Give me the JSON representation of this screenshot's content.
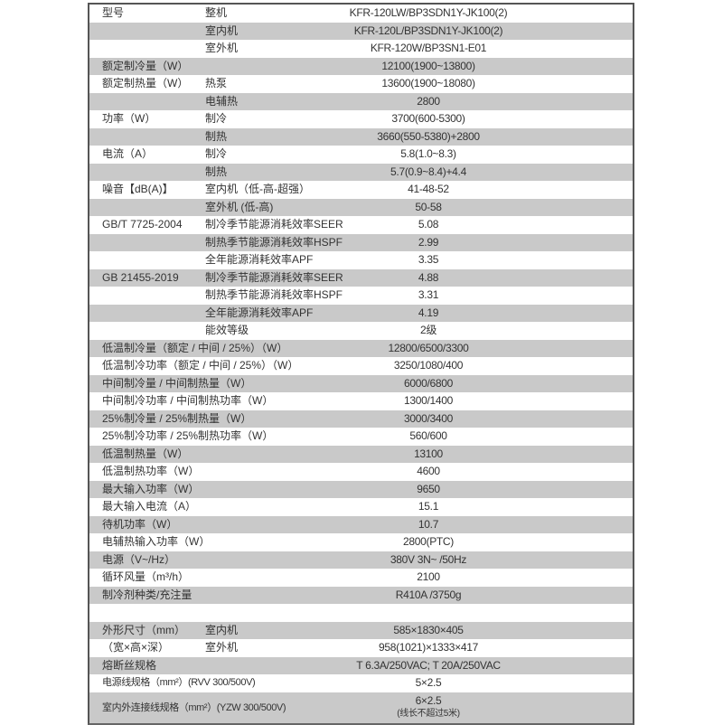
{
  "rows": [
    {
      "label": "型号",
      "sub": "整机",
      "value": "KFR-120LW/BP3SDN1Y-JK100(2)"
    },
    {
      "label": "",
      "sub": "室内机",
      "value": "KFR-120L/BP3SDN1Y-JK100(2)"
    },
    {
      "label": "",
      "sub": "室外机",
      "value": "KFR-120W/BP3SN1-E01"
    },
    {
      "label": "额定制冷量（W）",
      "sub": "",
      "value": "12100(1900~13800)"
    },
    {
      "label": "额定制热量（W）",
      "sub": "热泵",
      "value": "13600(1900~18080)"
    },
    {
      "label": "",
      "sub": "电辅热",
      "value": "2800"
    },
    {
      "label": "功率（W）",
      "sub": "制冷",
      "value": "3700(600-5300)"
    },
    {
      "label": "",
      "sub": "制热",
      "value": "3660(550-5380)+2800"
    },
    {
      "label": "电流（A）",
      "sub": "制冷",
      "value": "5.8(1.0~8.3)"
    },
    {
      "label": "",
      "sub": "制热",
      "value": "5.7(0.9~8.4)+4.4"
    },
    {
      "label": "噪音【dB(A)】",
      "sub": "室内机（低-高-超强）",
      "value": "41-48-52"
    },
    {
      "label": "",
      "sub": "室外机 (低-高)",
      "value": "50-58"
    },
    {
      "label": "GB/T 7725-2004",
      "sub": "制冷季节能源消耗效率SEER",
      "value": "5.08"
    },
    {
      "label": "",
      "sub": "制热季节能源消耗效率HSPF",
      "value": "2.99"
    },
    {
      "label": "",
      "sub": "全年能源消耗效率APF",
      "value": "3.35"
    },
    {
      "label": "GB 21455-2019",
      "sub": "制冷季节能源消耗效率SEER",
      "value": "4.88"
    },
    {
      "label": "",
      "sub": "制热季节能源消耗效率HSPF",
      "value": "3.31"
    },
    {
      "label": "",
      "sub": "全年能源消耗效率APF",
      "value": "4.19"
    },
    {
      "label": "",
      "sub": "能效等级",
      "value": "2级"
    },
    {
      "label": "低温制冷量（额定 / 中间 / 25%）（W）",
      "sub": "",
      "value": "12800/6500/3300"
    },
    {
      "label": "低温制冷功率（额定 / 中间 / 25%）（W）",
      "sub": "",
      "value": "3250/1080/400"
    },
    {
      "label": "中间制冷量 / 中间制热量（W）",
      "sub": "",
      "value": "6000/6800"
    },
    {
      "label": "中间制冷功率 / 中间制热功率（W）",
      "sub": "",
      "value": "1300/1400"
    },
    {
      "label": "25%制冷量 / 25%制热量（W）",
      "sub": "",
      "value": "3000/3400"
    },
    {
      "label": "25%制冷功率 / 25%制热功率（W）",
      "sub": "",
      "value": "560/600"
    },
    {
      "label": "低温制热量（W）",
      "sub": "",
      "value": "13100"
    },
    {
      "label": "低温制热功率（W）",
      "sub": "",
      "value": "4600"
    },
    {
      "label": "最大输入功率（W）",
      "sub": "",
      "value": "9650"
    },
    {
      "label": "最大输入电流（A）",
      "sub": "",
      "value": "15.1"
    },
    {
      "label": "待机功率（W）",
      "sub": "",
      "value": "10.7"
    },
    {
      "label": "电辅热输入功率（W）",
      "sub": "",
      "value": "2800(PTC)"
    },
    {
      "label": "电源（V~/Hz）",
      "sub": "",
      "value": "380V 3N~ /50Hz"
    },
    {
      "label": "循环风量（m³/h）",
      "sub": "",
      "value": "2100"
    },
    {
      "label": "制冷剂种类/充注量",
      "sub": "",
      "value": "R410A /3750g"
    },
    {
      "label": "",
      "sub": "",
      "value": ""
    },
    {
      "label": "外形尺寸（mm）",
      "sub": "室内机",
      "value": "585×1830×405"
    },
    {
      "label": "（宽×高×深）",
      "sub": "室外机",
      "value": "958(1021)×1333×417"
    },
    {
      "label": "熔断丝规格",
      "sub": "",
      "value": "T 6.3A/250VAC; T 20A/250VAC"
    },
    {
      "label": "电源线规格（mm²）(RVV 300/500V)",
      "sub": "",
      "value": "5×2.5"
    },
    {
      "label": "室内外连接线规格（mm²）(YZW 300/500V)",
      "sub": "",
      "value": "6×2.5",
      "note": "(线长不超过5米)"
    }
  ]
}
